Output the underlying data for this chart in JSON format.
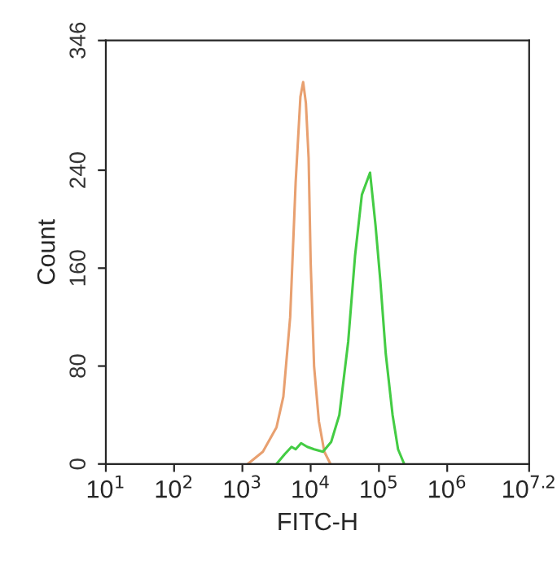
{
  "chart_data": {
    "type": "line",
    "xlabel": "FITC-H",
    "ylabel": "Count",
    "log": "x",
    "xlim": [
      10,
      15848931.92
    ],
    "xticks": [
      {
        "value": 10,
        "label": "10$^{1}$"
      },
      {
        "value": 100,
        "label": "10$^{2}$"
      },
      {
        "value": 1000,
        "label": "10$^{3}$"
      },
      {
        "value": 10000,
        "label": "10$^{4}$"
      },
      {
        "value": 100000,
        "label": "10$^{5}$"
      },
      {
        "value": 1000000,
        "label": "10$^{6}$"
      },
      {
        "value": 15848931.92,
        "label": "10$^{7.2}$"
      }
    ],
    "ylim": [
      0,
      346
    ],
    "yticks": [
      0,
      80,
      160,
      240,
      346
    ],
    "grid": false,
    "series": [
      {
        "color": "#e8a070",
        "x": [
          1202,
          1995,
          3162,
          3981,
          5012,
          6026,
          7079,
          7762,
          8511,
          9333,
          10000,
          11220,
          13183,
          15849,
          19498
        ],
        "values": [
          0,
          10,
          30,
          55,
          120,
          230,
          300,
          312,
          295,
          250,
          165,
          80,
          35,
          10,
          0
        ]
      },
      {
        "color": "#44cc44",
        "x": [
          3162,
          4169,
          5248,
          6026,
          7244,
          8913,
          11220,
          15136,
          19953,
          26303,
          35481,
          44668,
          56234,
          74131,
          89125,
          104713,
          125893,
          158489,
          190546,
          234423
        ],
        "values": [
          0,
          8,
          14,
          12,
          17,
          14,
          12,
          10,
          18,
          40,
          100,
          170,
          220,
          238,
          195,
          150,
          90,
          40,
          12,
          0
        ]
      }
    ]
  }
}
